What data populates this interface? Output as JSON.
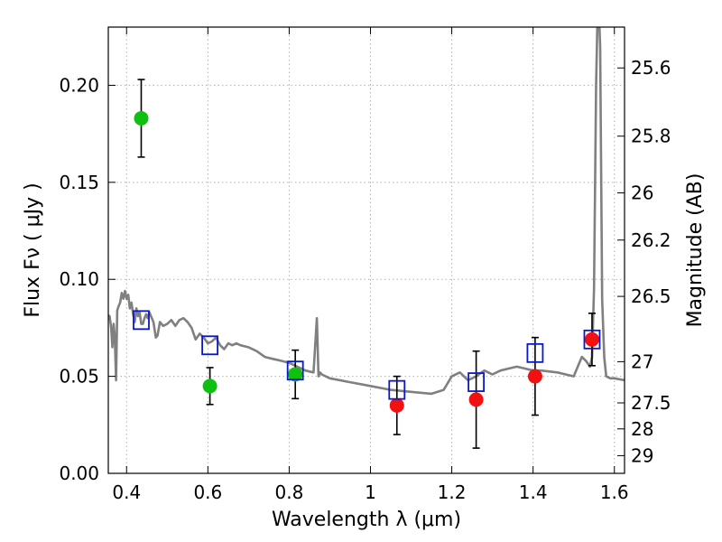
{
  "chart_data": {
    "type": "scatter",
    "title": "",
    "xlabel": "Wavelength  λ (μm)",
    "ylabel": "Flux  Fν  ( μJy )",
    "y2label": "Magnitude (AB)",
    "xlim": [
      0.355,
      1.625
    ],
    "ylim": [
      0.0,
      0.23
    ],
    "grid": true,
    "x_ticks": [
      0.4,
      0.6,
      0.8,
      1.0,
      1.2,
      1.4,
      1.6
    ],
    "x_tick_labels": [
      "0.4",
      "0.6",
      "0.8",
      "1",
      "1.2",
      "1.4",
      "1.6"
    ],
    "y_ticks": [
      0.0,
      0.05,
      0.1,
      0.15,
      0.2
    ],
    "y_tick_labels": [
      "0.00",
      "0.05",
      "0.10",
      "0.15",
      "0.20"
    ],
    "y2_ticks": [
      {
        "mag": 25.6,
        "label": "25.6"
      },
      {
        "mag": 25.8,
        "label": "25.8"
      },
      {
        "mag": 26.0,
        "label": "26"
      },
      {
        "mag": 26.2,
        "label": "26.2"
      },
      {
        "mag": 26.5,
        "label": "26.5"
      },
      {
        "mag": 27.0,
        "label": "27"
      },
      {
        "mag": 27.5,
        "label": "27.5"
      },
      {
        "mag": 28.0,
        "label": "28"
      },
      {
        "mag": 29.0,
        "label": "29"
      }
    ],
    "colors": {
      "green": "#10c010",
      "red": "#f21010",
      "blue_square": "#0a18c8",
      "model_line": "#808080",
      "grid": "#b0b0b0"
    },
    "series": [
      {
        "kind": "line",
        "x": [
          0.355,
          0.358,
          0.362,
          0.365,
          0.368,
          0.371,
          0.374,
          0.377,
          0.38,
          0.384,
          0.388,
          0.392,
          0.396,
          0.4,
          0.404,
          0.408,
          0.412,
          0.416,
          0.42,
          0.424,
          0.428,
          0.432,
          0.436,
          0.44,
          0.444,
          0.448,
          0.452,
          0.456,
          0.46,
          0.466,
          0.472,
          0.476,
          0.482,
          0.49,
          0.5,
          0.51,
          0.52,
          0.53,
          0.54,
          0.55,
          0.56,
          0.57,
          0.58,
          0.59,
          0.6,
          0.61,
          0.62,
          0.63,
          0.64,
          0.65,
          0.66,
          0.67,
          0.68,
          0.7,
          0.72,
          0.74,
          0.76,
          0.78,
          0.8,
          0.82,
          0.84,
          0.86,
          0.868,
          0.872,
          0.876,
          0.88,
          0.9,
          0.95,
          1.0,
          1.05,
          1.1,
          1.15,
          1.18,
          1.2,
          1.22,
          1.24,
          1.26,
          1.28,
          1.3,
          1.32,
          1.34,
          1.36,
          1.38,
          1.4,
          1.42,
          1.46,
          1.5,
          1.52,
          1.53,
          1.54,
          1.545,
          1.55,
          1.555,
          1.56,
          1.565,
          1.57,
          1.575,
          1.58,
          1.59,
          1.6,
          1.625
        ],
        "y": [
          0.0815,
          0.081,
          0.075,
          0.065,
          0.077,
          0.07,
          0.048,
          0.084,
          0.086,
          0.088,
          0.093,
          0.09,
          0.094,
          0.09,
          0.092,
          0.085,
          0.088,
          0.082,
          0.078,
          0.085,
          0.081,
          0.083,
          0.077,
          0.077,
          0.08,
          0.082,
          0.08,
          0.083,
          0.081,
          0.078,
          0.07,
          0.071,
          0.078,
          0.076,
          0.077,
          0.079,
          0.076,
          0.079,
          0.08,
          0.078,
          0.075,
          0.069,
          0.072,
          0.07,
          0.067,
          0.068,
          0.07,
          0.066,
          0.064,
          0.067,
          0.066,
          0.067,
          0.066,
          0.065,
          0.063,
          0.06,
          0.059,
          0.058,
          0.057,
          0.055,
          0.053,
          0.052,
          0.08,
          0.05,
          0.052,
          0.051,
          0.049,
          0.047,
          0.045,
          0.043,
          0.042,
          0.041,
          0.043,
          0.05,
          0.052,
          0.048,
          0.05,
          0.053,
          0.051,
          0.053,
          0.054,
          0.055,
          0.054,
          0.053,
          0.053,
          0.052,
          0.05,
          0.06,
          0.058,
          0.055,
          0.06,
          0.095,
          0.2,
          0.25,
          0.22,
          0.09,
          0.06,
          0.05,
          0.049,
          0.049,
          0.048
        ]
      },
      {
        "kind": "points",
        "marker": "circle",
        "color_key": "green",
        "x": [
          0.436,
          0.605,
          0.815
        ],
        "y": [
          0.183,
          0.045,
          0.051
        ],
        "yerr": [
          0.02,
          0.0095,
          0.0125
        ]
      },
      {
        "kind": "points",
        "marker": "circle",
        "color_key": "red",
        "x": [
          1.065,
          1.26,
          1.405,
          1.545
        ],
        "y": [
          0.035,
          0.038,
          0.05,
          0.069
        ],
        "yerr": [
          0.015,
          0.025,
          0.02,
          0.0135
        ]
      },
      {
        "kind": "points",
        "marker": "square",
        "color_key": "blue_square",
        "x": [
          0.436,
          0.605,
          0.815,
          1.065,
          1.26,
          1.405,
          1.545
        ],
        "y": [
          0.079,
          0.066,
          0.053,
          0.043,
          0.047,
          0.062,
          0.069
        ]
      }
    ]
  }
}
